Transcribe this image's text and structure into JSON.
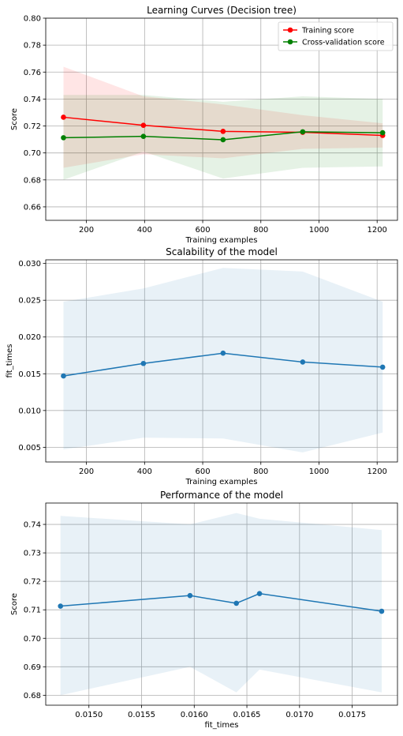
{
  "chart_data": [
    {
      "type": "line",
      "title": "Learning Curves (Decision tree)",
      "xlabel": "Training examples",
      "ylabel": "Score",
      "xlim": [
        60,
        1270
      ],
      "ylim": [
        0.65,
        0.8
      ],
      "xticks": [
        200,
        400,
        600,
        800,
        1000,
        1200
      ],
      "xtick_labels": [
        "200",
        "400",
        "600",
        "800",
        "1000",
        "1200"
      ],
      "yticks": [
        0.66,
        0.68,
        0.7,
        0.72,
        0.74,
        0.76,
        0.78,
        0.8
      ],
      "ytick_labels": [
        "0.66",
        "0.68",
        "0.70",
        "0.72",
        "0.74",
        "0.76",
        "0.78",
        "0.80"
      ],
      "grid": true,
      "legend": "upper-right",
      "x": [
        121,
        396,
        670,
        944,
        1219
      ],
      "series": [
        {
          "name": "Training score",
          "color": "#ff0000",
          "band_color": "#ff0000",
          "values": [
            0.7265,
            0.7205,
            0.716,
            0.7153,
            0.713
          ],
          "lower": [
            0.689,
            0.699,
            0.696,
            0.703,
            0.704
          ],
          "upper": [
            0.764,
            0.742,
            0.736,
            0.728,
            0.722
          ]
        },
        {
          "name": "Cross-validation score",
          "color": "#008000",
          "band_color": "#008000",
          "values": [
            0.7113,
            0.7123,
            0.7098,
            0.7157,
            0.715
          ],
          "lower": [
            0.68,
            0.701,
            0.681,
            0.689,
            0.69
          ],
          "upper": [
            0.743,
            0.743,
            0.738,
            0.742,
            0.74
          ]
        }
      ]
    },
    {
      "type": "line",
      "title": "Scalability of the model",
      "xlabel": "Training examples",
      "ylabel": "fit_times",
      "xlim": [
        60,
        1270
      ],
      "ylim": [
        0.003,
        0.0305
      ],
      "xticks": [
        200,
        400,
        600,
        800,
        1000,
        1200
      ],
      "xtick_labels": [
        "200",
        "400",
        "600",
        "800",
        "1000",
        "1200"
      ],
      "yticks": [
        0.005,
        0.01,
        0.015,
        0.02,
        0.025,
        0.03
      ],
      "ytick_labels": [
        "0.005",
        "0.010",
        "0.015",
        "0.020",
        "0.025",
        "0.030"
      ],
      "grid": true,
      "x": [
        121,
        396,
        670,
        944,
        1219
      ],
      "series": [
        {
          "color": "#1f77b4",
          "band_color": "#1f77b4",
          "values": [
            0.0147,
            0.0164,
            0.0178,
            0.0166,
            0.0159
          ],
          "lower": [
            0.0047,
            0.0063,
            0.0062,
            0.0043,
            0.007
          ],
          "upper": [
            0.0248,
            0.0266,
            0.0294,
            0.0289,
            0.0248
          ]
        }
      ]
    },
    {
      "type": "line",
      "title": "Performance of the model",
      "xlabel": "fit_times",
      "ylabel": "Score",
      "xlim": [
        0.01459,
        0.01793
      ],
      "ylim": [
        0.6765,
        0.7475
      ],
      "xticks": [
        0.015,
        0.0155,
        0.016,
        0.0165,
        0.017,
        0.0175
      ],
      "xtick_labels": [
        "0.0150",
        "0.0155",
        "0.0160",
        "0.0165",
        "0.0170",
        "0.0175"
      ],
      "yticks": [
        0.68,
        0.69,
        0.7,
        0.71,
        0.72,
        0.73,
        0.74
      ],
      "ytick_labels": [
        "0.68",
        "0.69",
        "0.70",
        "0.71",
        "0.72",
        "0.73",
        "0.74"
      ],
      "grid": true,
      "x": [
        0.01473,
        0.01596,
        0.0164,
        0.01662,
        0.01778
      ],
      "series": [
        {
          "color": "#1f77b4",
          "band_color": "#1f77b4",
          "values": [
            0.7113,
            0.715,
            0.7123,
            0.7157,
            0.7095
          ],
          "lower": [
            0.68,
            0.69,
            0.681,
            0.689,
            0.681
          ],
          "upper": [
            0.743,
            0.74,
            0.744,
            0.742,
            0.738
          ]
        }
      ]
    }
  ]
}
